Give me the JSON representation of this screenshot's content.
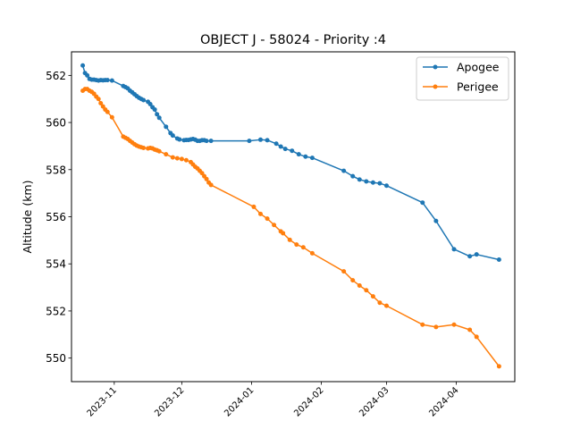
{
  "chart_data": {
    "type": "line",
    "title": "OBJECT J - 58024 - Priority :4",
    "xlabel": "",
    "ylabel": "Altitude (km)",
    "xlim": [
      "2023-10-13",
      "2024-04-27"
    ],
    "ylim": [
      549.0,
      563.0
    ],
    "x_ticks": [
      "2023-11",
      "2023-12",
      "2024-01",
      "2024-02",
      "2024-03",
      "2024-04"
    ],
    "y_ticks": [
      550,
      552,
      554,
      556,
      558,
      560,
      562
    ],
    "grid": false,
    "legend_position": "top-right",
    "series": [
      {
        "name": "Apogee",
        "color": "#1f77b4",
        "points": [
          [
            "2023-10-18",
            562.42
          ],
          [
            "2023-10-19",
            562.1
          ],
          [
            "2023-10-20",
            562.0
          ],
          [
            "2023-10-21",
            561.85
          ],
          [
            "2023-10-22",
            561.82
          ],
          [
            "2023-10-23",
            561.82
          ],
          [
            "2023-10-24",
            561.8
          ],
          [
            "2023-10-25",
            561.78
          ],
          [
            "2023-10-26",
            561.8
          ],
          [
            "2023-10-27",
            561.79
          ],
          [
            "2023-10-28",
            561.8
          ],
          [
            "2023-10-29",
            561.8
          ],
          [
            "2023-10-31",
            561.78
          ],
          [
            "2023-11-05",
            561.55
          ],
          [
            "2023-11-06",
            561.5
          ],
          [
            "2023-11-07",
            561.45
          ],
          [
            "2023-11-08",
            561.35
          ],
          [
            "2023-11-09",
            561.28
          ],
          [
            "2023-11-10",
            561.2
          ],
          [
            "2023-11-11",
            561.12
          ],
          [
            "2023-11-12",
            561.05
          ],
          [
            "2023-11-13",
            561.0
          ],
          [
            "2023-11-14",
            560.95
          ],
          [
            "2023-11-16",
            560.88
          ],
          [
            "2023-11-17",
            560.78
          ],
          [
            "2023-11-18",
            560.65
          ],
          [
            "2023-11-19",
            560.55
          ],
          [
            "2023-11-20",
            560.35
          ],
          [
            "2023-11-21",
            560.2
          ],
          [
            "2023-11-24",
            559.82
          ],
          [
            "2023-11-26",
            559.55
          ],
          [
            "2023-11-27",
            559.45
          ],
          [
            "2023-11-29",
            559.32
          ],
          [
            "2023-11-30",
            559.28
          ],
          [
            "2023-12-02",
            559.25
          ],
          [
            "2023-12-03",
            559.26
          ],
          [
            "2023-12-04",
            559.26
          ],
          [
            "2023-12-05",
            559.28
          ],
          [
            "2023-12-06",
            559.3
          ],
          [
            "2023-12-07",
            559.27
          ],
          [
            "2023-12-08",
            559.22
          ],
          [
            "2023-12-09",
            559.22
          ],
          [
            "2023-12-10",
            559.25
          ],
          [
            "2023-12-11",
            559.25
          ],
          [
            "2023-12-12",
            559.22
          ],
          [
            "2023-12-14",
            559.22
          ],
          [
            "2023-12-31",
            559.22
          ],
          [
            "2024-01-05",
            559.27
          ],
          [
            "2024-01-08",
            559.25
          ],
          [
            "2024-01-12",
            559.1
          ],
          [
            "2024-01-14",
            558.98
          ],
          [
            "2024-01-16",
            558.88
          ],
          [
            "2024-01-19",
            558.8
          ],
          [
            "2024-01-22",
            558.65
          ],
          [
            "2024-01-25",
            558.55
          ],
          [
            "2024-01-28",
            558.5
          ],
          [
            "2024-02-11",
            557.95
          ],
          [
            "2024-02-15",
            557.72
          ],
          [
            "2024-02-18",
            557.58
          ],
          [
            "2024-02-21",
            557.5
          ],
          [
            "2024-02-24",
            557.45
          ],
          [
            "2024-02-27",
            557.42
          ],
          [
            "2024-03-01",
            557.32
          ],
          [
            "2024-03-17",
            556.6
          ],
          [
            "2024-03-23",
            555.82
          ],
          [
            "2024-03-31",
            554.62
          ],
          [
            "2024-04-07",
            554.32
          ],
          [
            "2024-04-10",
            554.4
          ],
          [
            "2024-04-20",
            554.18
          ]
        ]
      },
      {
        "name": "Perigee",
        "color": "#ff7f0e",
        "points": [
          [
            "2023-10-18",
            561.35
          ],
          [
            "2023-10-19",
            561.42
          ],
          [
            "2023-10-20",
            561.42
          ],
          [
            "2023-10-21",
            561.35
          ],
          [
            "2023-10-22",
            561.3
          ],
          [
            "2023-10-23",
            561.22
          ],
          [
            "2023-10-24",
            561.1
          ],
          [
            "2023-10-25",
            561.0
          ],
          [
            "2023-10-26",
            560.82
          ],
          [
            "2023-10-27",
            560.68
          ],
          [
            "2023-10-28",
            560.55
          ],
          [
            "2023-10-29",
            560.45
          ],
          [
            "2023-10-31",
            560.22
          ],
          [
            "2023-11-05",
            559.4
          ],
          [
            "2023-11-06",
            559.35
          ],
          [
            "2023-11-07",
            559.3
          ],
          [
            "2023-11-08",
            559.22
          ],
          [
            "2023-11-09",
            559.15
          ],
          [
            "2023-11-10",
            559.08
          ],
          [
            "2023-11-11",
            559.02
          ],
          [
            "2023-11-12",
            558.98
          ],
          [
            "2023-11-13",
            558.95
          ],
          [
            "2023-11-14",
            558.92
          ],
          [
            "2023-11-16",
            558.9
          ],
          [
            "2023-11-17",
            558.92
          ],
          [
            "2023-11-18",
            558.9
          ],
          [
            "2023-11-19",
            558.85
          ],
          [
            "2023-11-20",
            558.82
          ],
          [
            "2023-11-21",
            558.78
          ],
          [
            "2023-11-24",
            558.65
          ],
          [
            "2023-11-27",
            558.52
          ],
          [
            "2023-11-29",
            558.48
          ],
          [
            "2023-12-01",
            558.45
          ],
          [
            "2023-12-03",
            558.4
          ],
          [
            "2023-12-05",
            558.32
          ],
          [
            "2023-12-06",
            558.22
          ],
          [
            "2023-12-07",
            558.12
          ],
          [
            "2023-12-08",
            558.05
          ],
          [
            "2023-12-09",
            557.95
          ],
          [
            "2023-12-10",
            557.85
          ],
          [
            "2023-12-11",
            557.72
          ],
          [
            "2023-12-12",
            557.6
          ],
          [
            "2023-12-13",
            557.45
          ],
          [
            "2023-12-14",
            557.35
          ],
          [
            "2024-01-02",
            556.42
          ],
          [
            "2024-01-05",
            556.12
          ],
          [
            "2024-01-08",
            555.92
          ],
          [
            "2024-01-11",
            555.65
          ],
          [
            "2024-01-14",
            555.38
          ],
          [
            "2024-01-15",
            555.3
          ],
          [
            "2024-01-18",
            555.02
          ],
          [
            "2024-01-21",
            554.82
          ],
          [
            "2024-01-24",
            554.7
          ],
          [
            "2024-01-28",
            554.45
          ],
          [
            "2024-02-11",
            553.68
          ],
          [
            "2024-02-15",
            553.3
          ],
          [
            "2024-02-18",
            553.08
          ],
          [
            "2024-02-21",
            552.88
          ],
          [
            "2024-02-24",
            552.62
          ],
          [
            "2024-02-27",
            552.35
          ],
          [
            "2024-03-01",
            552.22
          ],
          [
            "2024-03-17",
            551.42
          ],
          [
            "2024-03-23",
            551.32
          ],
          [
            "2024-03-31",
            551.42
          ],
          [
            "2024-04-07",
            551.2
          ],
          [
            "2024-04-10",
            550.9
          ],
          [
            "2024-04-20",
            549.65
          ]
        ]
      }
    ]
  }
}
